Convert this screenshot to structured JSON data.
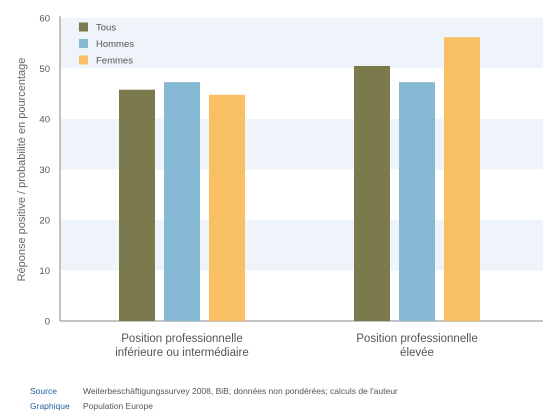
{
  "chart_data": {
    "type": "bar",
    "title": "",
    "xlabel": "",
    "ylabel": "Réponse positive / probabilité en pourcentage",
    "ylim": [
      0,
      60
    ],
    "yticks": [
      0,
      10,
      20,
      30,
      40,
      50,
      60
    ],
    "grid": "horizontal bands",
    "legend_position": "top-left",
    "categories": [
      [
        "Position professionnelle",
        "inférieure ou intermédiaire"
      ],
      [
        "Position professionnelle",
        "élevée"
      ]
    ],
    "series": [
      {
        "name": "Tous",
        "color": "#7a7a4c",
        "values": [
          45.8,
          50.5
        ]
      },
      {
        "name": "Hommes",
        "color": "#86b9d4",
        "values": [
          47.3,
          47.3
        ]
      },
      {
        "name": "Femmes",
        "color": "#f8c063",
        "values": [
          44.8,
          56.2
        ]
      }
    ]
  },
  "footer": {
    "source_label": "Source",
    "source_text": "Weiterbeschäftigungssurvey 2008, BiB; données non pondérées; calculs de l'auteur",
    "graphic_label": "Graphique",
    "graphic_text": "Population Europe"
  },
  "colors": {
    "band": "#eef4fa",
    "axis": "#888888",
    "tick_text": "#555555",
    "footer_label": "#1f5fa0"
  }
}
